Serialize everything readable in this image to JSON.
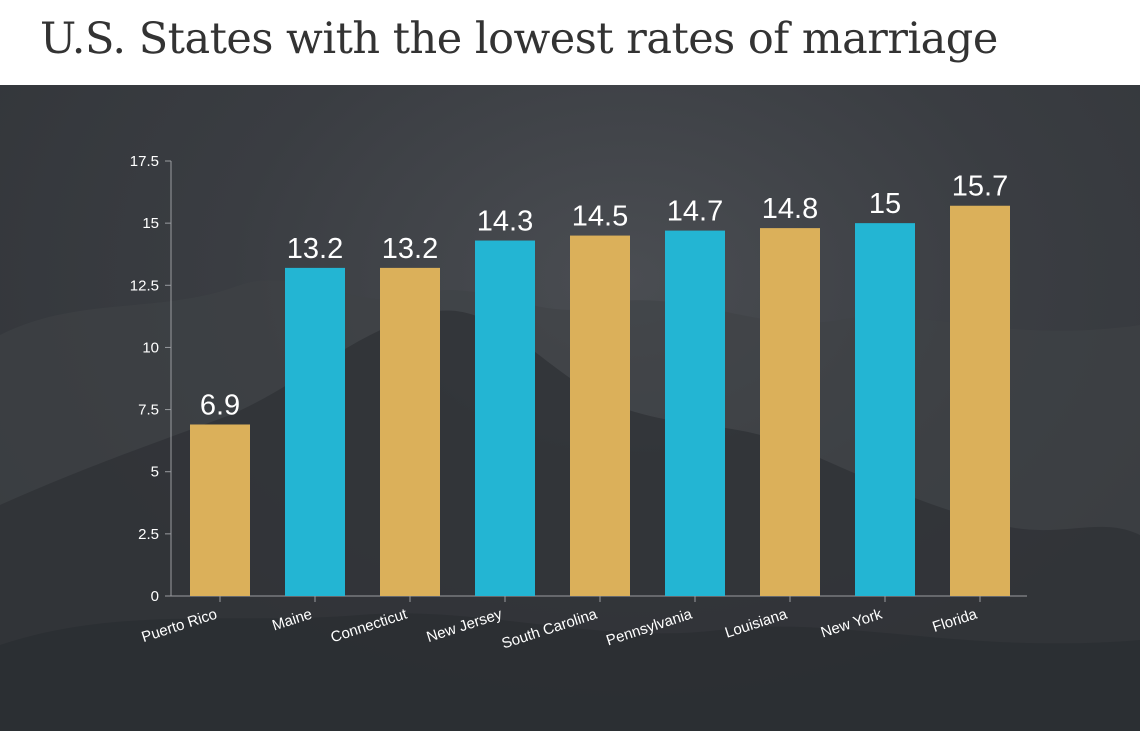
{
  "title": "U.S. States with the lowest rates of marriage",
  "colors": {
    "gold": "#dbb05a",
    "blue": "#23b5d3",
    "background": "#393c41",
    "axis": "#9a9ca0",
    "text": "#ffffff"
  },
  "chart_data": {
    "type": "bar",
    "title": "U.S. States with the lowest rates of marriage",
    "xlabel": "",
    "ylabel": "",
    "categories": [
      "Puerto Rico",
      "Maine",
      "Connecticut",
      "New Jersey",
      "South Carolina",
      "Pennsylvania",
      "Louisiana",
      "New York",
      "Florida"
    ],
    "values": [
      6.9,
      13.2,
      13.2,
      14.3,
      14.5,
      14.7,
      14.8,
      15,
      15.7
    ],
    "value_labels": [
      "6.9",
      "13.2",
      "13.2",
      "14.3",
      "14.5",
      "14.7",
      "14.8",
      "15",
      "15.7"
    ],
    "bar_colors": [
      "gold",
      "blue",
      "gold",
      "blue",
      "gold",
      "blue",
      "gold",
      "blue",
      "gold"
    ],
    "ylim": [
      0,
      17.5
    ],
    "yticks": [
      0,
      2.5,
      5,
      7.5,
      10,
      12.5,
      15,
      17.5
    ],
    "ytick_labels": [
      "0",
      "2.5",
      "5",
      "7.5",
      "10",
      "12.5",
      "15",
      "17.5"
    ],
    "grid": false,
    "legend": "none"
  }
}
